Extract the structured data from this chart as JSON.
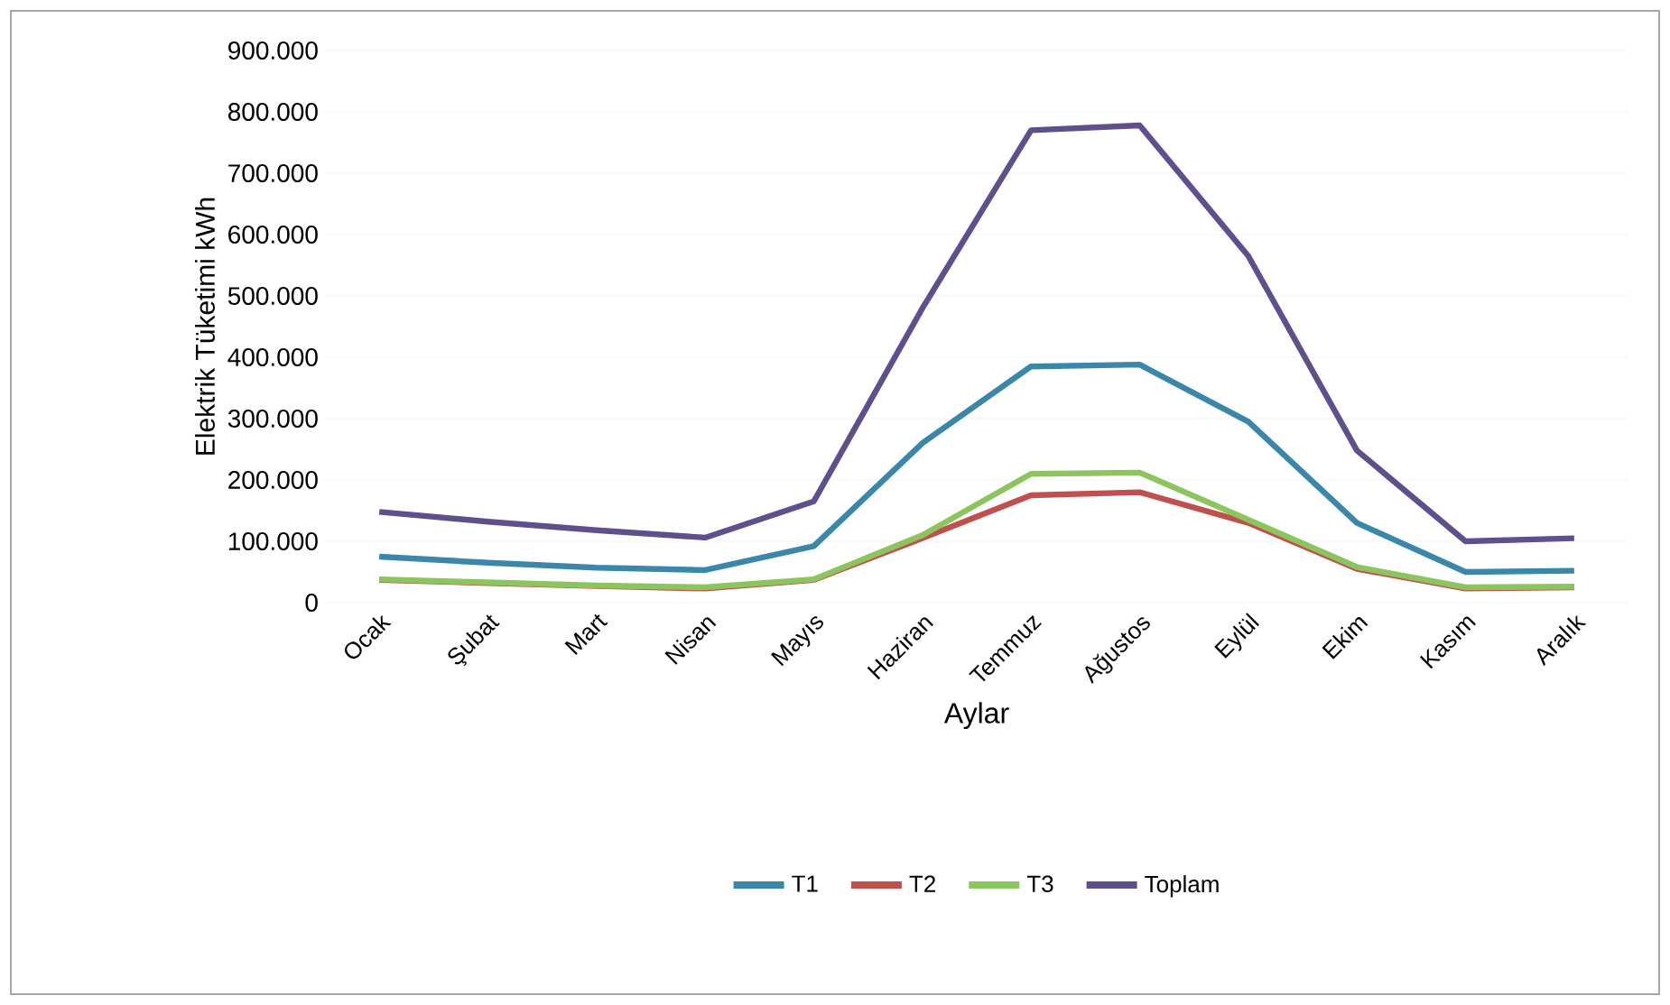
{
  "chart_data": {
    "type": "line",
    "xlabel": "Aylar",
    "ylabel": "Elektrik Tüketimi kWh",
    "categories": [
      "Ocak",
      "Şubat",
      "Mart",
      "Nisan",
      "Mayıs",
      "Haziran",
      "Temmuz",
      "Ağustos",
      "Eylül",
      "Ekim",
      "Kasım",
      "Aralık"
    ],
    "series": [
      {
        "name": "T1",
        "color": "#3a87aa",
        "values": [
          75000,
          65000,
          57000,
          53000,
          92000,
          260000,
          385000,
          388000,
          295000,
          130000,
          50000,
          52000
        ]
      },
      {
        "name": "T2",
        "color": "#c0504d",
        "values": [
          37000,
          32000,
          27000,
          23000,
          37000,
          105000,
          175000,
          180000,
          130000,
          55000,
          23000,
          25000
        ]
      },
      {
        "name": "T3",
        "color": "#8cc45e",
        "values": [
          38000,
          33000,
          28000,
          25000,
          38000,
          110000,
          210000,
          212000,
          135000,
          58000,
          25000,
          26000
        ]
      },
      {
        "name": "Toplam",
        "color": "#5f4f8c",
        "values": [
          148000,
          132000,
          118000,
          106000,
          165000,
          480000,
          770000,
          778000,
          565000,
          248000,
          100000,
          105000
        ]
      }
    ],
    "ylim": [
      0,
      900000
    ],
    "yticks": [
      0,
      {
        "value": 100000,
        "label": "100.000"
      },
      {
        "value": 200000,
        "label": "200.000"
      },
      {
        "value": 300000,
        "label": "300.000"
      },
      {
        "value": 400000,
        "label": "400.000"
      },
      {
        "value": 500000,
        "label": "500.000"
      },
      {
        "value": 600000,
        "label": "600.000"
      },
      {
        "value": 700000,
        "label": "700.000"
      },
      {
        "value": 800000,
        "label": "800.000"
      },
      {
        "value": 900000,
        "label": "900.000"
      }
    ],
    "grid": "y",
    "legend": "bottom",
    "marker": "none",
    "line_style": "solid"
  }
}
